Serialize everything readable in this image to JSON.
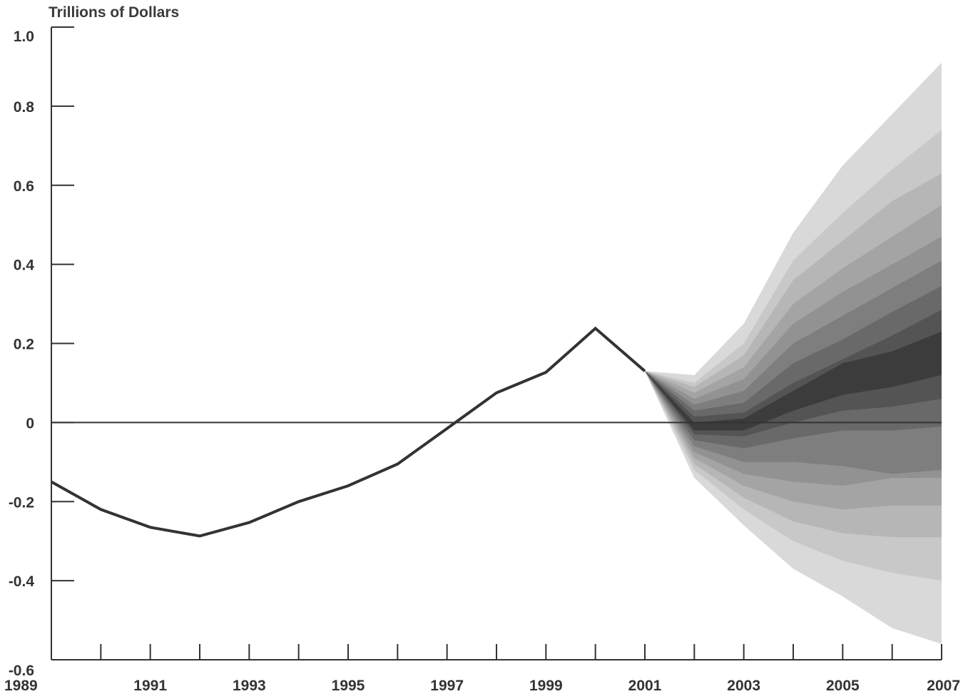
{
  "chart_data": {
    "type": "area",
    "ylabel": "Trillions of Dollars",
    "xlim": [
      1989,
      2007
    ],
    "ylim": [
      -0.6,
      1.0
    ],
    "y_ticks": [
      -0.6,
      -0.4,
      -0.2,
      0,
      0.2,
      0.4,
      0.6,
      0.8,
      1.0
    ],
    "y_tick_labels": [
      "-0.6",
      "-0.4",
      "-0.2",
      "0",
      "0.2",
      "0.4",
      "0.6",
      "0.8",
      "1.0"
    ],
    "x_ticks": [
      1989,
      1990,
      1991,
      1992,
      1993,
      1994,
      1995,
      1996,
      1997,
      1998,
      1999,
      2000,
      2001,
      2002,
      2003,
      2004,
      2005,
      2006,
      2007
    ],
    "x_tick_labels": [
      {
        "x": 1989,
        "label": "1989"
      },
      {
        "x": 1991,
        "label": "1991"
      },
      {
        "x": 1993,
        "label": "1993"
      },
      {
        "x": 1995,
        "label": "1995"
      },
      {
        "x": 1997,
        "label": "1997"
      },
      {
        "x": 1999,
        "label": "1999"
      },
      {
        "x": 2001,
        "label": "2001"
      },
      {
        "x": 2003,
        "label": "2003"
      },
      {
        "x": 2005,
        "label": "2005"
      },
      {
        "x": 2007,
        "label": "2007"
      }
    ],
    "grid": false,
    "reference_line_y": 0,
    "history": {
      "x": [
        1989,
        1990,
        1991,
        1992,
        1993,
        1994,
        1995,
        1996,
        1997,
        1998,
        1999,
        2000,
        2001
      ],
      "y": [
        -0.15,
        -0.22,
        -0.265,
        -0.287,
        -0.253,
        -0.2,
        -0.16,
        -0.105,
        -0.015,
        0.075,
        0.127,
        0.238,
        0.13
      ]
    },
    "fan": {
      "x": [
        2001,
        2002,
        2003,
        2004,
        2005,
        2006,
        2007
      ],
      "bands": [
        {
          "color": "#d9d9d9",
          "lower": [
            0.13,
            -0.14,
            -0.26,
            -0.37,
            -0.44,
            -0.52,
            -0.56
          ],
          "upper": [
            0.13,
            0.12,
            0.25,
            0.48,
            0.65,
            0.78,
            0.91
          ]
        },
        {
          "color": "#c8c8c8",
          "lower": [
            0.13,
            -0.12,
            -0.22,
            -0.3,
            -0.35,
            -0.38,
            -0.4
          ],
          "upper": [
            0.13,
            0.1,
            0.2,
            0.41,
            0.53,
            0.64,
            0.74
          ]
        },
        {
          "color": "#b6b6b6",
          "lower": [
            0.13,
            -0.105,
            -0.19,
            -0.25,
            -0.28,
            -0.29,
            -0.29
          ],
          "upper": [
            0.13,
            0.09,
            0.17,
            0.36,
            0.46,
            0.56,
            0.63
          ]
        },
        {
          "color": "#a4a4a4",
          "lower": [
            0.13,
            -0.09,
            -0.16,
            -0.2,
            -0.22,
            -0.21,
            -0.21
          ],
          "upper": [
            0.13,
            0.075,
            0.14,
            0.3,
            0.39,
            0.47,
            0.55
          ]
        },
        {
          "color": "#929292",
          "lower": [
            0.13,
            -0.075,
            -0.13,
            -0.15,
            -0.16,
            -0.14,
            -0.14
          ],
          "upper": [
            0.13,
            0.06,
            0.11,
            0.25,
            0.33,
            0.4,
            0.47
          ]
        },
        {
          "color": "#7e7e7e",
          "lower": [
            0.13,
            -0.06,
            -0.1,
            -0.1,
            -0.11,
            -0.13,
            -0.12
          ],
          "upper": [
            0.13,
            0.045,
            0.08,
            0.2,
            0.27,
            0.34,
            0.41
          ]
        },
        {
          "color": "#696969",
          "lower": [
            0.13,
            -0.045,
            -0.065,
            -0.04,
            -0.02,
            -0.02,
            -0.01
          ],
          "upper": [
            0.13,
            0.03,
            0.05,
            0.15,
            0.21,
            0.28,
            0.345
          ]
        },
        {
          "color": "#545454",
          "lower": [
            0.13,
            -0.03,
            -0.035,
            0.0,
            0.03,
            0.04,
            0.06
          ],
          "upper": [
            0.13,
            0.015,
            0.025,
            0.1,
            0.16,
            0.22,
            0.285
          ]
        },
        {
          "color": "#3c3c3c",
          "lower": [
            0.13,
            -0.02,
            -0.02,
            0.03,
            0.07,
            0.09,
            0.12
          ],
          "upper": [
            0.13,
            0.0,
            0.01,
            0.08,
            0.15,
            0.18,
            0.23
          ]
        }
      ]
    }
  }
}
